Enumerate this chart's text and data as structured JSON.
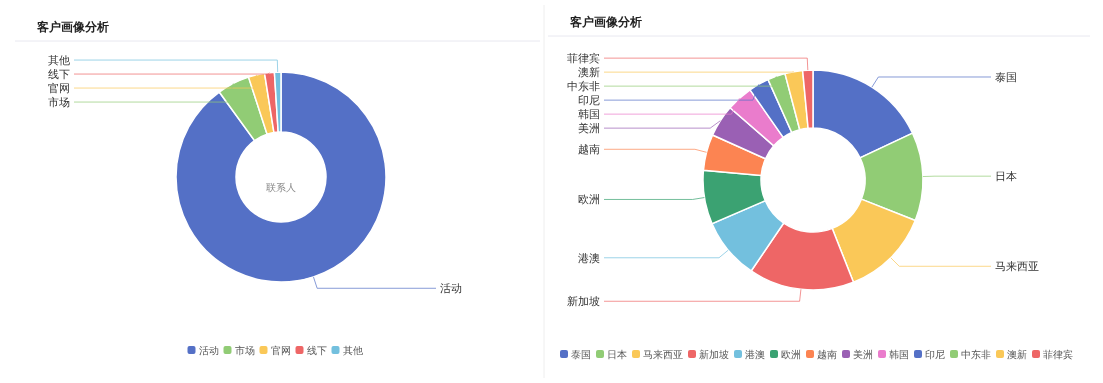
{
  "chart_data": [
    {
      "type": "donut",
      "title": "客户画像分析",
      "categories": [
        "活动",
        "市场",
        "官网",
        "线下",
        "其他"
      ],
      "values": [
        90,
        5,
        2.5,
        1.5,
        1
      ],
      "colors": [
        "#5470c6",
        "#91cc75",
        "#fac858",
        "#ee6666",
        "#73c0de"
      ],
      "legend": "bottom",
      "annotations": [
        "联系人"
      ]
    },
    {
      "type": "donut",
      "title": "客户画像分析",
      "categories": [
        "泰国",
        "日本",
        "马来西亚",
        "新加坡",
        "港澳",
        "欧洲",
        "越南",
        "美洲",
        "韩国",
        "印尼",
        "中东非",
        "澳新",
        "菲律宾"
      ],
      "values": [
        18,
        13,
        13,
        15.5,
        9,
        7.9,
        5.3,
        4.7,
        3.9,
        3,
        2.6,
        2.6,
        1.5
      ],
      "colors": [
        "#5470c6",
        "#91cc75",
        "#fac858",
        "#ee6666",
        "#73c0de",
        "#3ba272",
        "#fc8452",
        "#9a60b4",
        "#ea7ccc",
        "#5470c6",
        "#91cc75",
        "#fac858",
        "#ee6666"
      ],
      "legend": "bottom"
    }
  ]
}
